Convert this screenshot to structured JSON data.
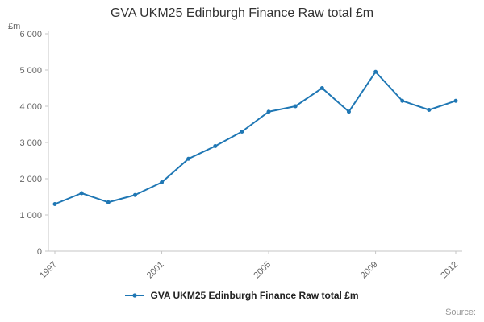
{
  "title": "GVA UKM25 Edinburgh Finance Raw total £m",
  "source": "Source:",
  "legend": {
    "label": "GVA UKM25 Edinburgh Finance Raw total £m"
  },
  "chart_data": {
    "type": "line",
    "title": "GVA UKM25 Edinburgh Finance Raw total £m",
    "xlabel": "",
    "ylabel": "£m",
    "x": [
      1997,
      1998,
      1999,
      2000,
      2001,
      2002,
      2003,
      2004,
      2005,
      2006,
      2007,
      2008,
      2009,
      2010,
      2011,
      2012
    ],
    "series": [
      {
        "name": "GVA UKM25 Edinburgh Finance Raw total £m",
        "values": [
          1300,
          1600,
          1350,
          1550,
          1900,
          2550,
          2900,
          3300,
          3850,
          4000,
          4500,
          3850,
          4950,
          4150,
          3900,
          4150
        ]
      }
    ],
    "ylim": [
      0,
      6000
    ],
    "ytick_step": 1000,
    "xticks": [
      1997,
      2001,
      2005,
      2009,
      2012
    ],
    "grid": false,
    "legend_position": "bottom",
    "line_color": "#1f77b4",
    "axis_color": "#c6c6c6",
    "tick_label_color": "#666666"
  }
}
